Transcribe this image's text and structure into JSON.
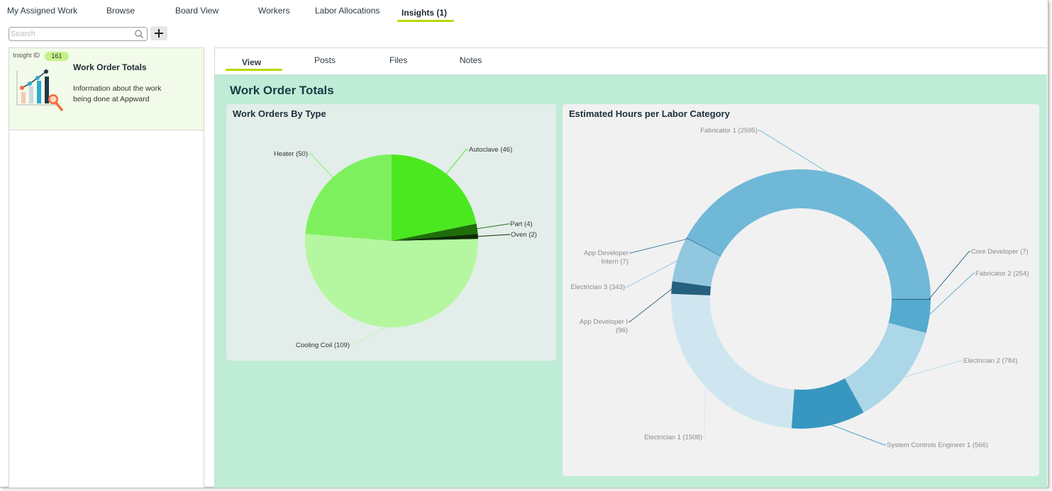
{
  "nav": {
    "tabs": [
      {
        "label": "My Assigned Work"
      },
      {
        "label": "Browse"
      },
      {
        "label": "Board View"
      },
      {
        "label": "Workers"
      },
      {
        "label": "Labor Allocations"
      },
      {
        "label": "Insights (1)"
      }
    ],
    "active_tab": "Insights (1)"
  },
  "search": {
    "placeholder": "Search",
    "value": ""
  },
  "add_button": {
    "icon": "plus-icon"
  },
  "insight_card": {
    "id_label": "Insight ID",
    "id_value": "161",
    "title": "Work Order Totals",
    "description": "Information about the work being done at Appward",
    "icon": "chart-magnifier-icon"
  },
  "subtabs": [
    {
      "label": "View"
    },
    {
      "label": "Posts"
    },
    {
      "label": "Files"
    },
    {
      "label": "Notes"
    }
  ],
  "active_subtab": "View",
  "page_title": "Work Order Totals",
  "colors": {
    "accent": "#b7d900",
    "content_bg": "#bfecd6",
    "card_bg": "#f2fbe9"
  },
  "chart_data": [
    {
      "type": "pie",
      "title": "Work Orders By Type",
      "slices": [
        {
          "label": "Autoclave (46)",
          "value": 46,
          "color": "#4be820"
        },
        {
          "label": "Part (4)",
          "value": 4,
          "color": "#1e6e0a"
        },
        {
          "label": "Oven (2)",
          "value": 2,
          "color": "#0b2d04"
        },
        {
          "label": "Cooling Coil (109)",
          "value": 109,
          "color": "#b5f7a0"
        },
        {
          "label": "Heater (50)",
          "value": 50,
          "color": "#7ef05e"
        }
      ],
      "extra_thin_slice_color": "#2fa012"
    },
    {
      "type": "pie",
      "subtype": "donut",
      "title": "Estimated Hours per Labor Category",
      "slices": [
        {
          "label": "Core Developer (7)",
          "value": 7,
          "color": "#1b5d78"
        },
        {
          "label": "Fabricator 2 (254)",
          "value": 254,
          "color": "#55aacf"
        },
        {
          "label": "Electrician 2 (784)",
          "value": 784,
          "color": "#acd7e8"
        },
        {
          "label": "System Controls Engineer 1 (566)",
          "value": 566,
          "color": "#3797c0"
        },
        {
          "label": "Electrician 1 (1508)",
          "value": 1508,
          "color": "#cfe6f0"
        },
        {
          "label": "App Developer I (96)",
          "value": 96,
          "color": "#25607e"
        },
        {
          "label": "Electrician 3 (343)",
          "value": 343,
          "color": "#91c8df"
        },
        {
          "label": "App Developer Intern (7)",
          "value": 7,
          "color": "#3a7fa0"
        },
        {
          "label": "Fabricator 1 (2595)",
          "value": 2595,
          "color": "#70b8d7"
        }
      ]
    }
  ]
}
